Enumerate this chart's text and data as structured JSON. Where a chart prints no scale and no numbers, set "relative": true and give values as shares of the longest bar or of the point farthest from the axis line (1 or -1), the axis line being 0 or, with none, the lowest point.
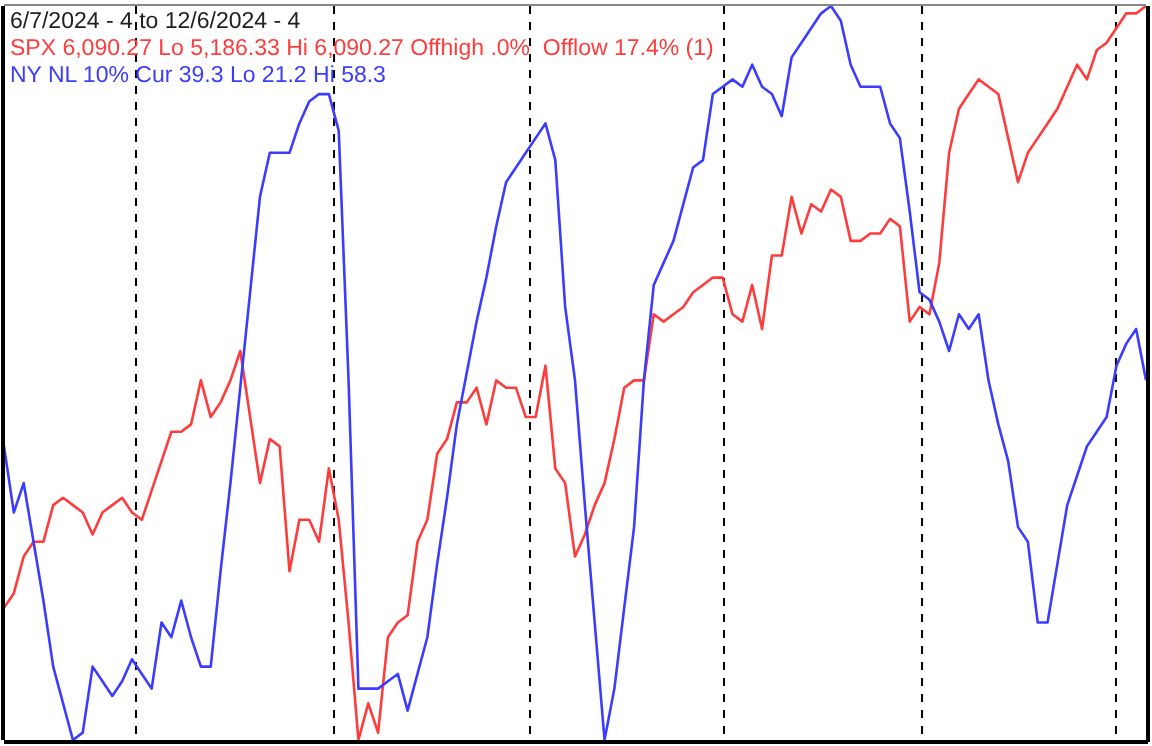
{
  "chart_data": {
    "type": "line",
    "relative": true,
    "marker": "none",
    "line_style": "solid",
    "annotations": [
      "6/7/2024 - 4 to 12/6/2024 - 4",
      "SPX 6,090.27 Lo 5,186.33 Hi 6,090.27 Offhigh .0%  Offlow 17.4% (1)",
      "NY NL 10% Cur 39.3 Lo 21.2 Hi 58.3"
    ],
    "categories": [
      null,
      null,
      null,
      null,
      null,
      null,
      null,
      null,
      null,
      null,
      null,
      null,
      null,
      null,
      null,
      null,
      null,
      null,
      null,
      null,
      null,
      null,
      null,
      null,
      null,
      null,
      null,
      null,
      null,
      null,
      null,
      null,
      null,
      null,
      null,
      null,
      null,
      null,
      null,
      null,
      null,
      null,
      null,
      null,
      null,
      null,
      null,
      null,
      null,
      null,
      null,
      null,
      null,
      null,
      null,
      null,
      null,
      null,
      null,
      null,
      null,
      null,
      null,
      null,
      null,
      null,
      null,
      null,
      null,
      null,
      null,
      null,
      null,
      null,
      null,
      null,
      null,
      null,
      null,
      null,
      null,
      null,
      null,
      null,
      null,
      null,
      null,
      null,
      null,
      null,
      null,
      null,
      null,
      null,
      null,
      null,
      null,
      null,
      null,
      null,
      null,
      null,
      null,
      null,
      null,
      null,
      null,
      null,
      null,
      null,
      null,
      null,
      null,
      null,
      null,
      null,
      null
    ],
    "series": [
      {
        "color": "#ff3c3c",
        "values": [
          0.18,
          0.2,
          0.25,
          0.27,
          0.27,
          0.32,
          0.33,
          0.32,
          0.31,
          0.28,
          0.31,
          0.32,
          0.33,
          0.31,
          0.3,
          0.34,
          0.38,
          0.42,
          0.42,
          0.43,
          0.49,
          0.44,
          0.46,
          0.49,
          0.53,
          0.44,
          0.35,
          0.41,
          0.4,
          0.23,
          0.3,
          0.3,
          0.27,
          0.37,
          0.3,
          0.16,
          0,
          0.05,
          0.01,
          0.14,
          0.16,
          0.17,
          0.27,
          0.3,
          0.39,
          0.41,
          0.46,
          0.46,
          0.48,
          0.43,
          0.49,
          0.48,
          0.48,
          0.44,
          0.44,
          0.51,
          0.37,
          0.35,
          0.25,
          0.28,
          0.32,
          0.35,
          0.41,
          0.48,
          0.49,
          0.49,
          0.58,
          0.57,
          0.58,
          0.59,
          0.61,
          0.62,
          0.63,
          0.63,
          0.58,
          0.57,
          0.62,
          0.56,
          0.66,
          0.66,
          0.74,
          0.69,
          0.73,
          0.72,
          0.75,
          0.74,
          0.68,
          0.68,
          0.69,
          0.69,
          0.71,
          0.7,
          0.57,
          0.59,
          0.58,
          0.65,
          0.8,
          0.86,
          0.88,
          0.9,
          0.89,
          0.88,
          0.82,
          0.76,
          0.8,
          0.82,
          0.84,
          0.86,
          0.89,
          0.92,
          0.9,
          0.94,
          0.95,
          0.97,
          0.99,
          0.99,
          1
        ]
      },
      {
        "color": "#3c3cff",
        "values": [
          0.4,
          0.31,
          0.35,
          0.27,
          0.19,
          0.1,
          0.05,
          0,
          0.01,
          0.1,
          0.08,
          0.06,
          0.08,
          0.11,
          0.09,
          0.07,
          0.16,
          0.14,
          0.19,
          0.14,
          0.1,
          0.1,
          0.23,
          0.35,
          0.48,
          0.61,
          0.74,
          0.8,
          0.8,
          0.8,
          0.84,
          0.87,
          0.88,
          0.88,
          0.83,
          0.49,
          0.07,
          0.07,
          0.07,
          0.08,
          0.09,
          0.04,
          0.09,
          0.14,
          0.24,
          0.33,
          0.43,
          0.5,
          0.57,
          0.63,
          0.7,
          0.76,
          0.78,
          0.8,
          0.82,
          0.84,
          0.79,
          0.59,
          0.49,
          0.32,
          0.16,
          0,
          0.07,
          0.18,
          0.29,
          0.49,
          0.62,
          0.65,
          0.68,
          0.73,
          0.78,
          0.79,
          0.88,
          0.89,
          0.9,
          0.89,
          0.92,
          0.89,
          0.88,
          0.85,
          0.93,
          0.95,
          0.97,
          0.99,
          1,
          0.98,
          0.92,
          0.89,
          0.89,
          0.89,
          0.84,
          0.82,
          0.72,
          0.61,
          0.6,
          0.57,
          0.53,
          0.58,
          0.56,
          0.58,
          0.49,
          0.43,
          0.38,
          0.29,
          0.27,
          0.16,
          0.16,
          0.24,
          0.32,
          0.36,
          0.4,
          0.42,
          0.44,
          0.51,
          0.54,
          0.56,
          0.49
        ]
      }
    ]
  }
}
